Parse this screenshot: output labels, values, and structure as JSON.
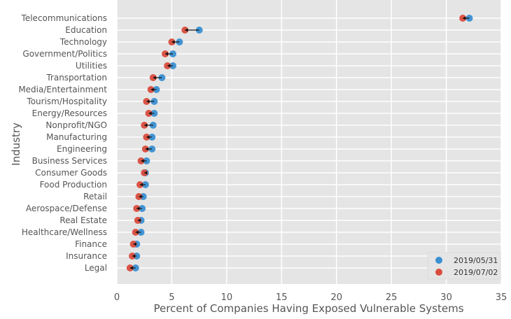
{
  "chart_data": {
    "type": "scatter",
    "title": "",
    "xlabel": "Percent of Companies Having Exposed Vulnerable Systems",
    "ylabel": "Industry",
    "xlim": [
      0,
      35
    ],
    "xticks": [
      0,
      5,
      10,
      15,
      20,
      25,
      30,
      35
    ],
    "grid": true,
    "legend_position": "bottom-right",
    "categories": [
      "Telecommunications",
      "Education",
      "Technology",
      "Government/Politics",
      "Utilities",
      "Transportation",
      "Media/Entertainment",
      "Tourism/Hospitality",
      "Energy/Resources",
      "Nonprofit/NGO",
      "Manufacturing",
      "Engineering",
      "Business Services",
      "Consumer Goods",
      "Food Production",
      "Retail",
      "Aerospace/Defense",
      "Real Estate",
      "Healthcare/Wellness",
      "Finance",
      "Insurance",
      "Legal"
    ],
    "series": [
      {
        "name": "2019/05/31",
        "color": "#3a8fd1",
        "values": [
          32.1,
          7.5,
          5.7,
          5.1,
          5.1,
          4.1,
          3.6,
          3.4,
          3.4,
          3.3,
          3.2,
          3.2,
          2.7,
          2.6,
          2.6,
          2.4,
          2.3,
          2.2,
          2.2,
          1.8,
          1.8,
          1.7
        ]
      },
      {
        "name": "2019/07/02",
        "color": "#d94c3d",
        "values": [
          31.5,
          6.2,
          5.0,
          4.4,
          4.6,
          3.3,
          3.1,
          2.7,
          2.9,
          2.5,
          2.7,
          2.6,
          2.2,
          2.5,
          2.1,
          2.0,
          1.8,
          1.9,
          1.7,
          1.5,
          1.4,
          1.2
        ]
      }
    ]
  }
}
